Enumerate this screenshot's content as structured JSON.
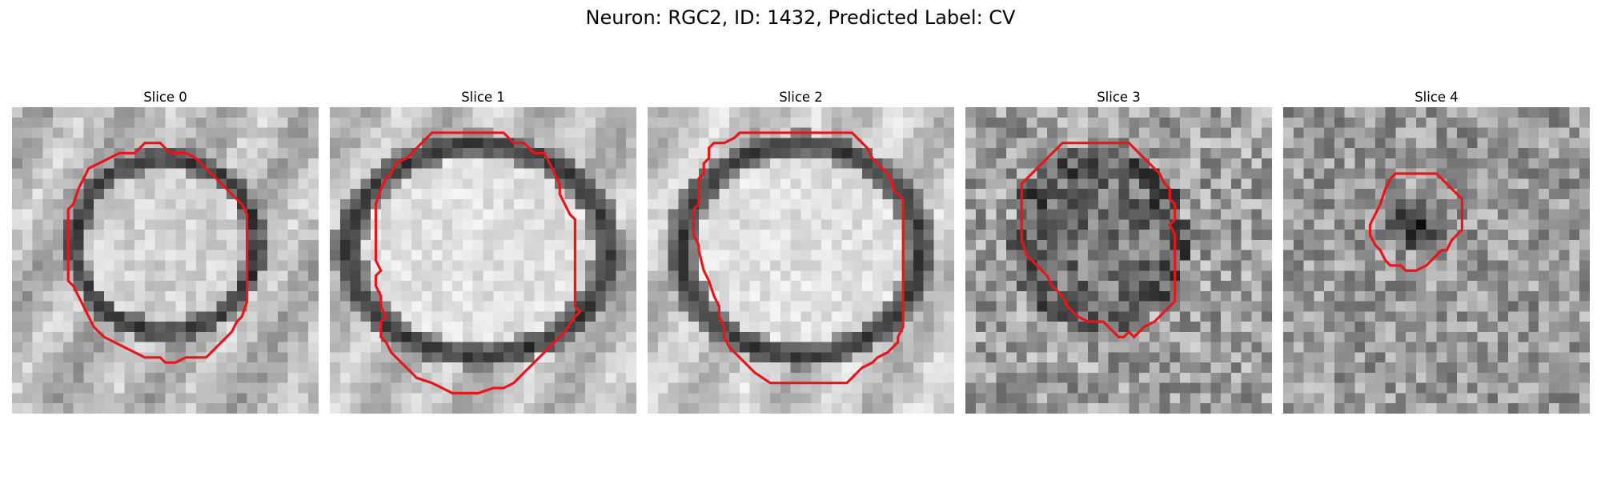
{
  "figure": {
    "title": "Neuron: RGC2, ID: 1432, Predicted Label: CV",
    "contour_color": "#e8151b"
  },
  "panels": [
    {
      "title": "Slice 0"
    },
    {
      "title": "Slice 1"
    },
    {
      "title": "Slice 2"
    },
    {
      "title": "Slice 3"
    },
    {
      "title": "Slice 4"
    }
  ]
}
